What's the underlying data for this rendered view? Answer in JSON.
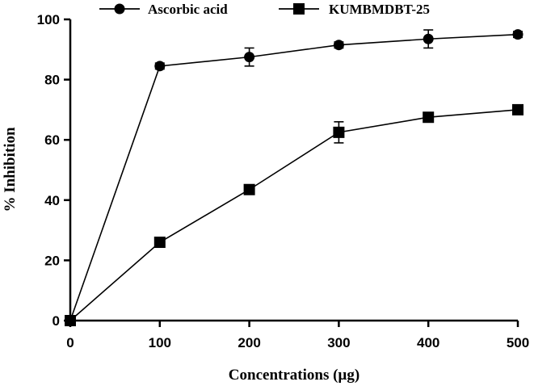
{
  "chart_data": {
    "type": "line",
    "title": "",
    "xlabel": "Concentrations (µg)",
    "ylabel": "% Inhibition",
    "x": [
      0,
      100,
      200,
      300,
      400,
      500
    ],
    "xlim": [
      0,
      500
    ],
    "ylim": [
      0,
      100
    ],
    "xticks": [
      0,
      100,
      200,
      300,
      400,
      500
    ],
    "yticks": [
      0,
      20,
      40,
      60,
      80,
      100
    ],
    "grid": false,
    "legend": {
      "placement": "top-center"
    },
    "series": [
      {
        "name": "Ascorbic acid",
        "marker": "circle",
        "values": [
          0,
          84.5,
          87.5,
          91.5,
          93.5,
          95
        ],
        "errors": [
          0,
          1,
          3,
          1,
          3,
          1
        ]
      },
      {
        "name": "KUMBMDBT-25",
        "marker": "square",
        "values": [
          0,
          26,
          43.5,
          62.5,
          67.5,
          70
        ],
        "errors": [
          0,
          1.5,
          1.5,
          3.5,
          1,
          1
        ]
      }
    ],
    "colors": {
      "line": "#000000",
      "marker": "#000000",
      "background": "#ffffff"
    }
  }
}
